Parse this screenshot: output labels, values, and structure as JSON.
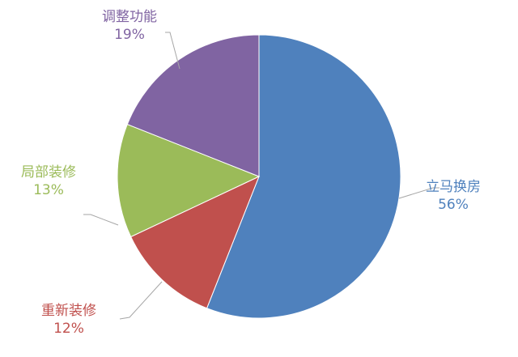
{
  "chart_data": {
    "type": "pie",
    "title": "",
    "start": "top",
    "direction": "clockwise",
    "slices": [
      {
        "label": "立马换房",
        "value": 56,
        "value_label": "56%",
        "color": "#4F81BD"
      },
      {
        "label": "重新装修",
        "value": 12,
        "value_label": "12%",
        "color": "#C0504D"
      },
      {
        "label": "局部装修",
        "value": 13,
        "value_label": "13%",
        "color": "#9BBB59"
      },
      {
        "label": "调整功能",
        "value": 19,
        "value_label": "19%",
        "color": "#8064A2"
      }
    ],
    "legend": "none"
  }
}
